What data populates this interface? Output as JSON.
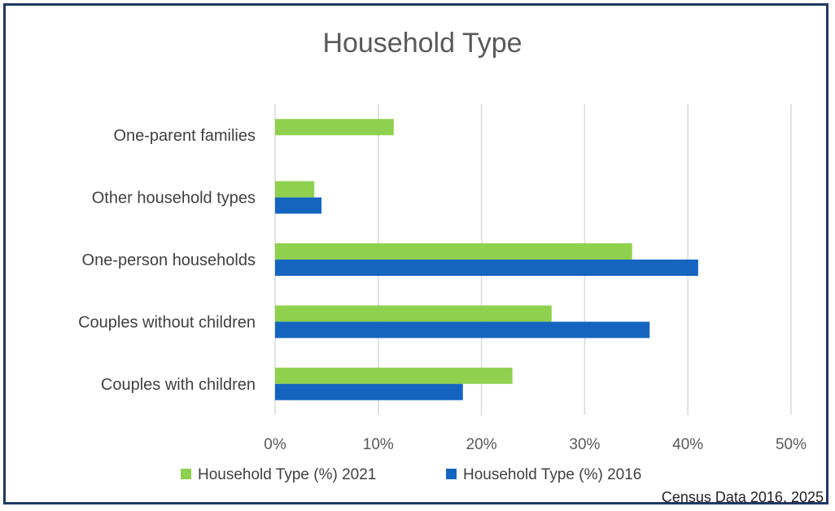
{
  "chart_data": {
    "type": "bar",
    "orientation": "horizontal",
    "title": "Household Type",
    "categories": [
      "Couples with children",
      "Couples without children",
      "One-person households",
      "Other household types",
      "One-parent families"
    ],
    "series": [
      {
        "name": "Household Type (%) 2021",
        "color": "#8fd14f",
        "values": [
          23.0,
          26.8,
          34.6,
          3.8,
          11.5
        ]
      },
      {
        "name": "Household Type (%) 2016",
        "color": "#1565c0",
        "values": [
          18.2,
          36.3,
          41.0,
          4.5,
          null
        ]
      }
    ],
    "xlim": [
      0,
      50
    ],
    "xticks": [
      "0%",
      "10%",
      "20%",
      "30%",
      "40%",
      "50%"
    ],
    "xlabel": "",
    "ylabel": "",
    "grid": true,
    "legend_position": "bottom"
  },
  "source_note": "Census Data 2016, 2025"
}
